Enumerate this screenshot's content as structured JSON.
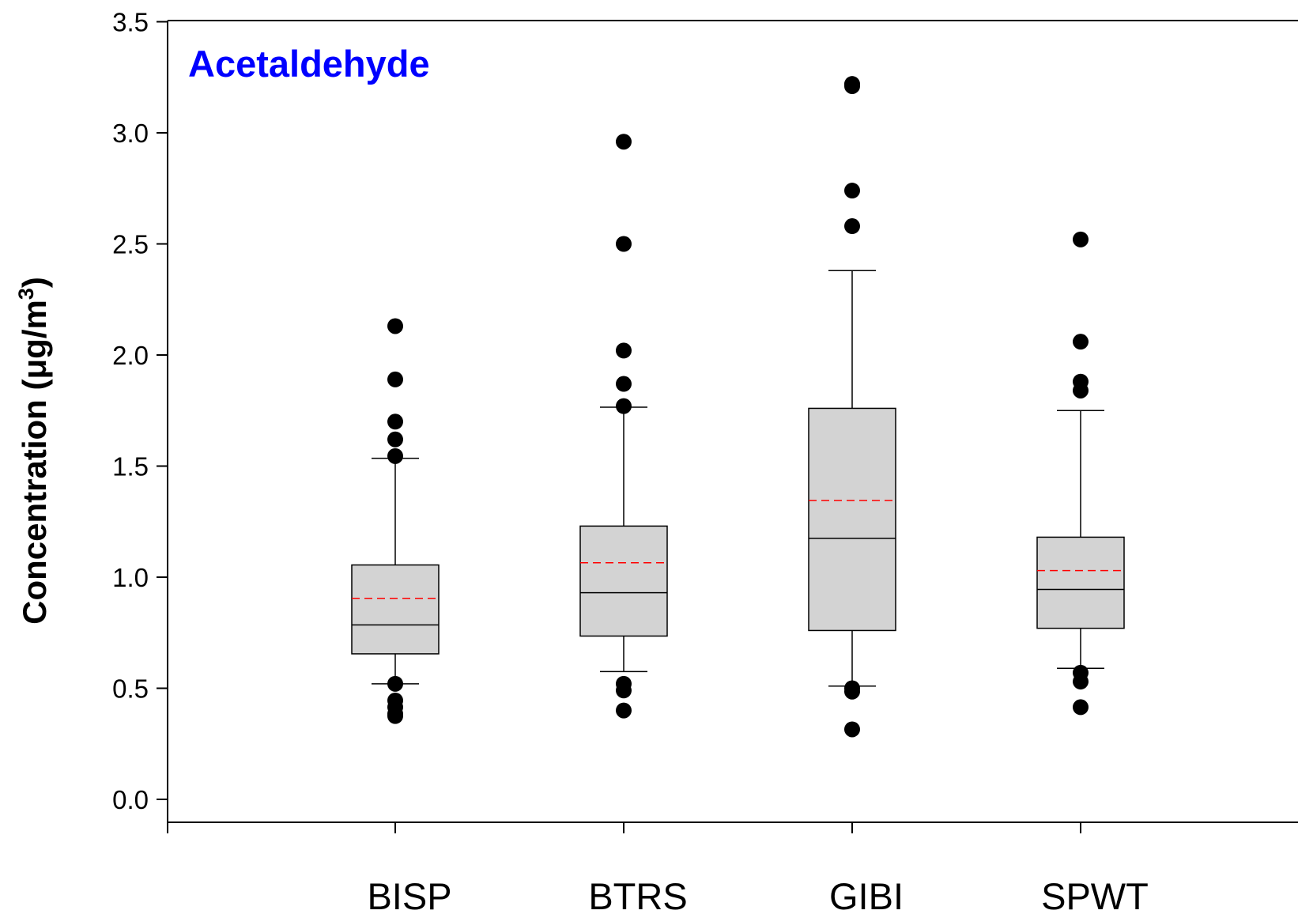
{
  "chart_data": {
    "type": "box",
    "title": "Acetaldehyde",
    "title_color": "#0000ff",
    "ylabel": {
      "text": "Concentration (μg/m",
      "superscript": "3",
      "close": ")"
    },
    "xlabel": "",
    "ylim": [
      0.0,
      3.5
    ],
    "yticks": [
      {
        "v": 0.0,
        "label": "0.0"
      },
      {
        "v": 0.5,
        "label": "0.5"
      },
      {
        "v": 1.0,
        "label": "1.0"
      },
      {
        "v": 1.5,
        "label": "1.5"
      },
      {
        "v": 2.0,
        "label": "2.0"
      },
      {
        "v": 2.5,
        "label": "2.5"
      },
      {
        "v": 3.0,
        "label": "3.0"
      },
      {
        "v": 3.5,
        "label": "3.5"
      }
    ],
    "categories": [
      "BISP",
      "BTRS",
      "GIBI",
      "SPWT"
    ],
    "grid": false,
    "box_fill": "#d3d3d3",
    "mean_color": "#ff0000",
    "boxes": [
      {
        "whisker_low": 0.52,
        "q1": 0.655,
        "median": 0.785,
        "q3": 1.055,
        "whisker_high": 1.535,
        "mean": 0.905,
        "outliers": [
          2.13,
          1.89,
          1.7,
          1.62,
          1.545,
          0.52,
          0.445,
          0.415,
          0.385,
          0.375
        ]
      },
      {
        "whisker_low": 0.575,
        "q1": 0.735,
        "median": 0.93,
        "q3": 1.23,
        "whisker_high": 1.765,
        "mean": 1.065,
        "outliers": [
          2.96,
          2.5,
          2.02,
          1.87,
          1.77,
          0.52,
          0.49,
          0.4
        ]
      },
      {
        "whisker_low": 0.51,
        "q1": 0.76,
        "median": 1.175,
        "q3": 1.76,
        "whisker_high": 2.38,
        "mean": 1.345,
        "outliers": [
          3.22,
          3.21,
          2.74,
          2.58,
          0.5,
          0.485,
          0.315
        ]
      },
      {
        "whisker_low": 0.59,
        "q1": 0.77,
        "median": 0.945,
        "q3": 1.18,
        "whisker_high": 1.75,
        "mean": 1.03,
        "outliers": [
          2.52,
          2.06,
          1.88,
          1.84,
          0.57,
          0.53,
          0.415
        ]
      }
    ]
  }
}
